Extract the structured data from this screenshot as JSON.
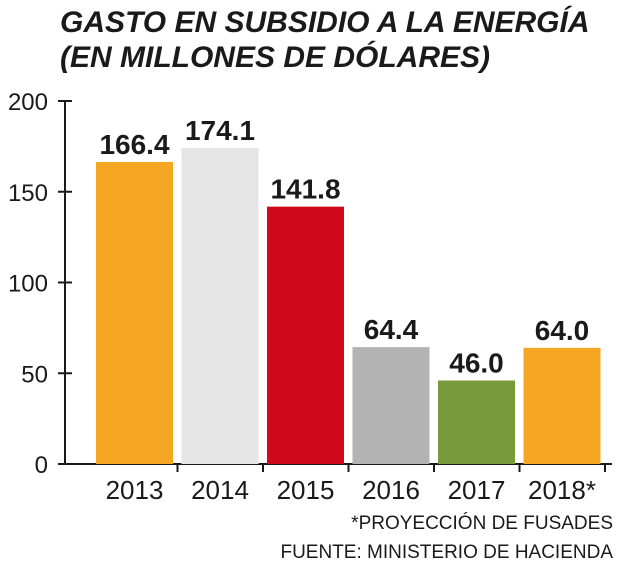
{
  "chart_data": {
    "type": "bar",
    "title_lines": [
      "GASTO EN SUBSIDIO A LA ENERGÍA",
      "(EN MILLONES DE DÓLARES)"
    ],
    "categories": [
      "2013",
      "2014",
      "2015",
      "2016",
      "2017",
      "2018*"
    ],
    "values": [
      166.4,
      174.1,
      141.8,
      64.4,
      46.0,
      64.0
    ],
    "value_labels": [
      "166.4",
      "174.1",
      "141.8",
      "64.4",
      "46.0",
      "64.0"
    ],
    "bar_colors": [
      "#f5a623",
      "#e6e6e6",
      "#d0091c",
      "#b3b3b3",
      "#79993d",
      "#f5a623"
    ],
    "ylim": [
      0,
      200
    ],
    "yticks": [
      0,
      50,
      100,
      150,
      200
    ],
    "ytick_labels": [
      "0",
      "50",
      "100",
      "150",
      "200"
    ],
    "xlabel": "",
    "ylabel": "",
    "grid": false,
    "legend": "none"
  },
  "notes": {
    "projection": "*PROYECCIÓN DE FUSADES",
    "source": "FUENTE: MINISTERIO DE HACIENDA"
  }
}
